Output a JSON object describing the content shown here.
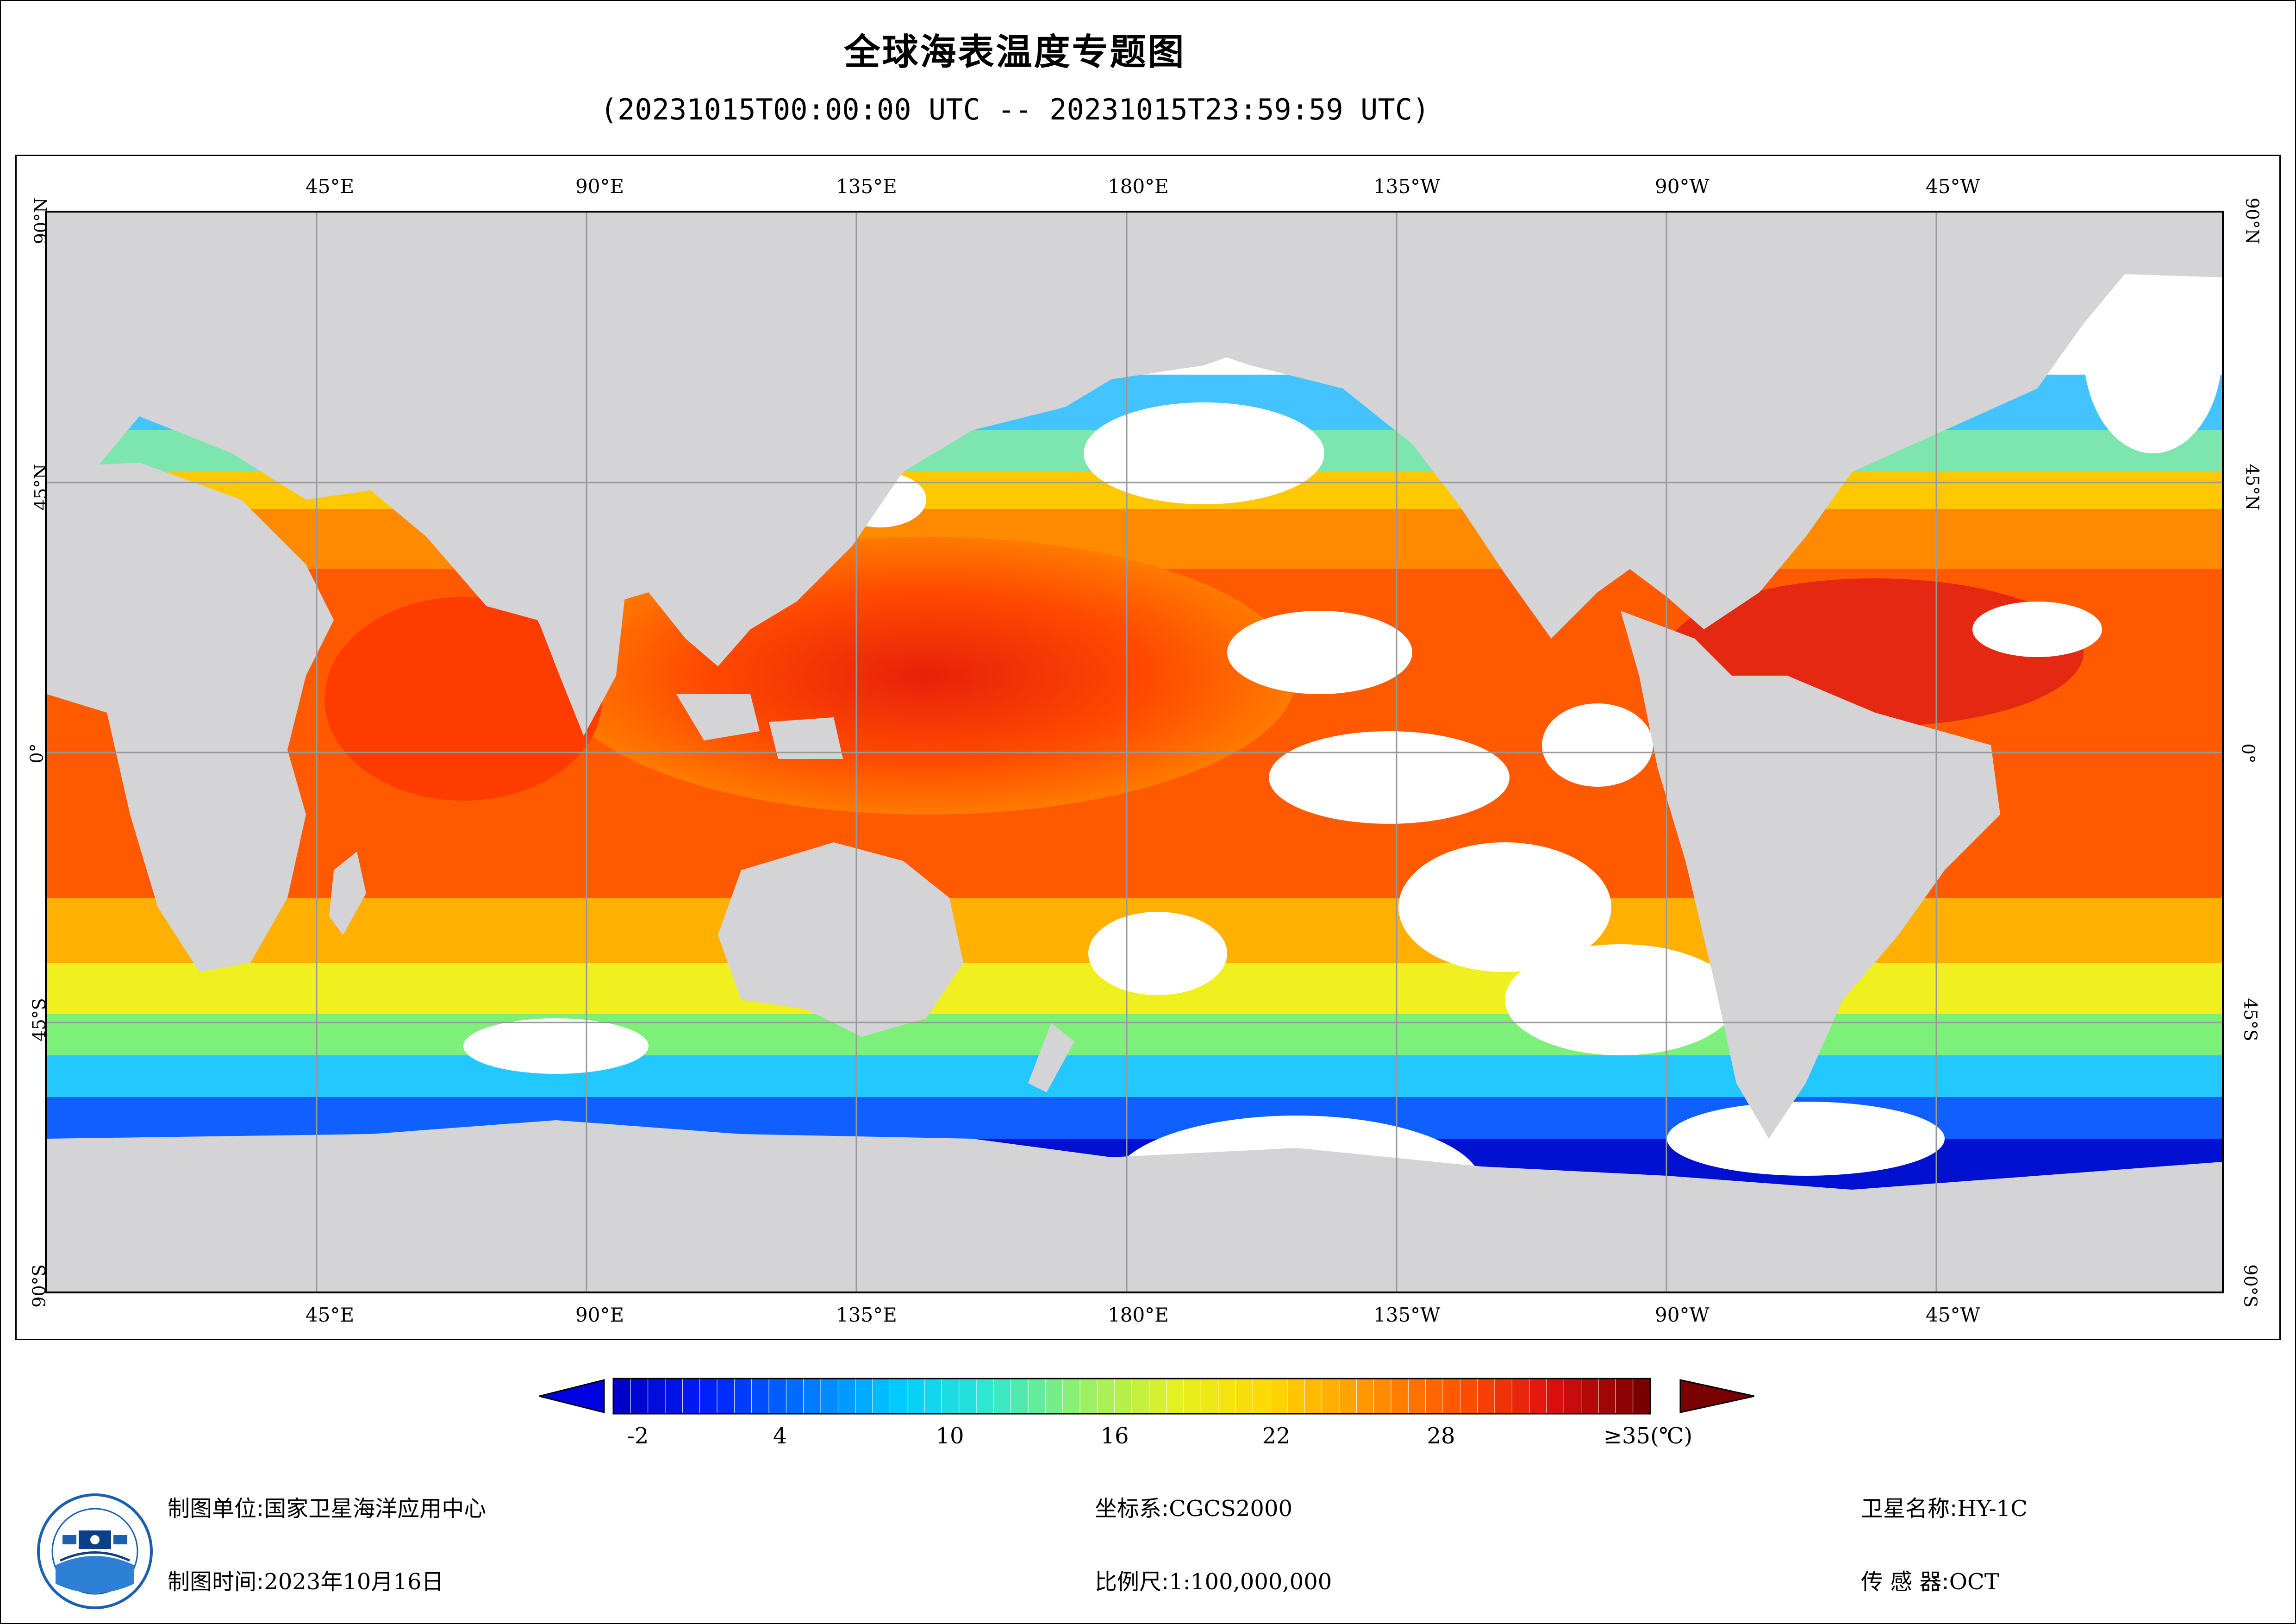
{
  "title": "全球海表温度专题图",
  "subtitle": "(20231015T00:00:00 UTC -- 20231015T23:59:59 UTC)",
  "map": {
    "top_lon_labels": [
      "45°E",
      "90°E",
      "135°E",
      "180°E",
      "135°W",
      "90°W",
      "45°W"
    ],
    "bottom_lon_labels": [
      "45°E",
      "90°E",
      "135°E",
      "180°E",
      "135°W",
      "90°W",
      "45°W"
    ],
    "lat_labels": [
      "90°N",
      "45°N",
      "0°",
      "45°S",
      "90°S"
    ],
    "colors": {
      "land": "#d4d4d6",
      "nodata": "#ffffff",
      "grid": "#999999"
    }
  },
  "colorbar": {
    "ticks": [
      "-2",
      "4",
      "10",
      "16",
      "22",
      "28",
      "≥35(℃)"
    ],
    "min_value": -2,
    "max_value": 35,
    "unit": "℃",
    "colors": [
      "#0000c8",
      "#0022ff",
      "#0077ff",
      "#00ccff",
      "#33e8cc",
      "#99f066",
      "#e6f020",
      "#ffd700",
      "#ff9900",
      "#ff5500",
      "#e01010",
      "#7a0000"
    ]
  },
  "footer": {
    "producer_label": "制图单位:",
    "producer_value": "国家卫星海洋应用中心",
    "time_label": "制图时间:",
    "time_value": "2023年10月16日",
    "crs_label": "坐标系:",
    "crs_value": "CGCS2000",
    "scale_label": "比例尺:",
    "scale_value": "1:100,000,000",
    "satellite_label": "卫星名称:",
    "satellite_value": "HY-1C",
    "sensor_label": "传 感 器:",
    "sensor_value": "OCT"
  }
}
